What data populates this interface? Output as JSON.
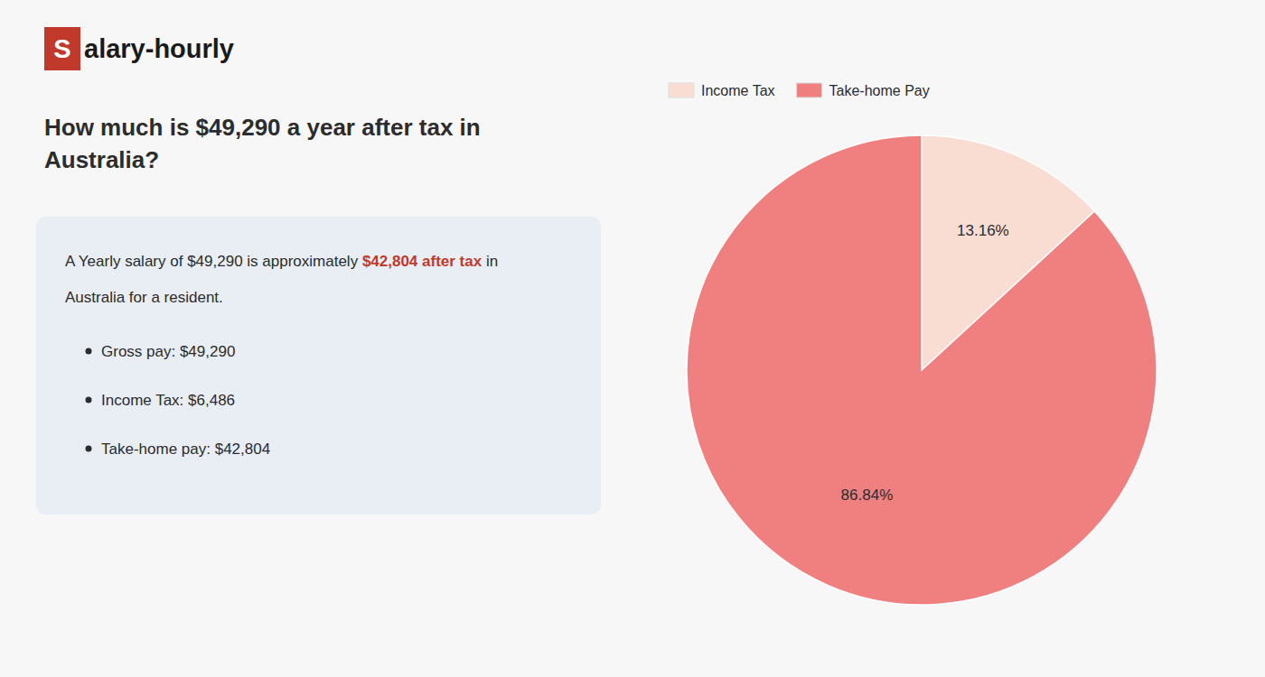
{
  "chart_data": {
    "type": "pie",
    "title": "How much is $49,290 a year after tax in\nAustralia?",
    "categories": [
      "Income Tax",
      "Take-home Pay"
    ],
    "values": [
      13.16,
      86.84
    ],
    "value_labels": [
      "13.16%",
      "86.84%"
    ],
    "colors": [
      "#f9ddd3",
      "#f08080"
    ],
    "data_labels": true,
    "legend": "upper left",
    "annotations": [
      "S",
      "alary-hourly",
      "A Yearly salary of $49,290 is approximately ",
      "$42,804 after tax",
      " in",
      "Australia for a resident.",
      "Gross pay: $49,290",
      "Income Tax: $6,486",
      "Take-home pay: $42,804"
    ]
  }
}
